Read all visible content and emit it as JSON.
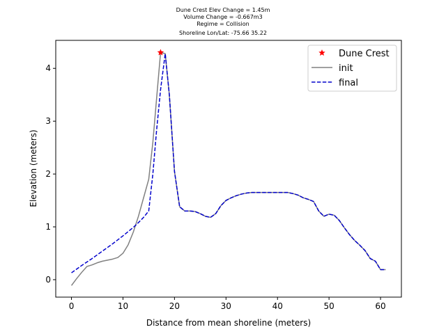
{
  "chart_data": {
    "type": "line",
    "title_lines": [
      "Dune Crest Elev Change = 1.45m",
      "Volume Change = -0.667m3",
      "Regime = Collision",
      "Shoreline Lon/Lat: -75.66 35.22"
    ],
    "xlabel": "Distance from mean shoreline (meters)",
    "ylabel": "Elevation (meters)",
    "xlim": [
      -3.05,
      64.05
    ],
    "ylim": [
      -0.33,
      4.53
    ],
    "xticks": [
      0,
      10,
      20,
      30,
      40,
      50,
      60
    ],
    "yticks": [
      0,
      1,
      2,
      3,
      4
    ],
    "legend_position": "top-right",
    "series": [
      {
        "name": "Dune Crest",
        "kind": "marker",
        "color": "#ff0000",
        "x": [
          17.3
        ],
        "y": [
          4.3
        ]
      },
      {
        "name": "init",
        "kind": "solid",
        "color": "#808080",
        "x": [
          0,
          1,
          2,
          3,
          4,
          5,
          6,
          7,
          8,
          9,
          10,
          11,
          12,
          13,
          14,
          15,
          15.8,
          16.5,
          17.3,
          18.2,
          19,
          20,
          21,
          22,
          23,
          24,
          25,
          26,
          27,
          28,
          29,
          30,
          31,
          32,
          33,
          34,
          35,
          36,
          37,
          38,
          39,
          40,
          41,
          42,
          43,
          44,
          45,
          46,
          47,
          48,
          49,
          50,
          51,
          52,
          53,
          54,
          55,
          56,
          57,
          58,
          59,
          60,
          61
        ],
        "y": [
          -0.11,
          0.02,
          0.14,
          0.25,
          0.28,
          0.32,
          0.35,
          0.37,
          0.39,
          0.42,
          0.5,
          0.66,
          0.9,
          1.2,
          1.55,
          1.9,
          2.6,
          3.4,
          4.3,
          4.28,
          3.5,
          2.05,
          1.38,
          1.3,
          1.3,
          1.29,
          1.25,
          1.2,
          1.18,
          1.25,
          1.4,
          1.5,
          1.55,
          1.59,
          1.62,
          1.64,
          1.65,
          1.65,
          1.65,
          1.65,
          1.65,
          1.65,
          1.65,
          1.65,
          1.63,
          1.6,
          1.55,
          1.52,
          1.48,
          1.3,
          1.2,
          1.24,
          1.22,
          1.12,
          0.98,
          0.85,
          0.74,
          0.65,
          0.55,
          0.4,
          0.35,
          0.19,
          0.19
        ]
      },
      {
        "name": "final",
        "kind": "dashed",
        "color": "#0000cc",
        "x": [
          0,
          2,
          4,
          6,
          8,
          10,
          12,
          13,
          14,
          15,
          15.8,
          16.5,
          17.3,
          18.2,
          19,
          20,
          21,
          22,
          23,
          24,
          25,
          26,
          27,
          28,
          29,
          30,
          31,
          32,
          33,
          34,
          35,
          36,
          37,
          38,
          39,
          40,
          41,
          42,
          43,
          44,
          45,
          46,
          47,
          48,
          49,
          50,
          51,
          52,
          53,
          54,
          55,
          56,
          57,
          58,
          59,
          60,
          61
        ],
        "y": [
          0.13,
          0.27,
          0.4,
          0.54,
          0.68,
          0.83,
          0.99,
          1.08,
          1.18,
          1.3,
          2.0,
          2.8,
          3.6,
          4.28,
          3.5,
          2.05,
          1.38,
          1.3,
          1.3,
          1.29,
          1.25,
          1.2,
          1.18,
          1.25,
          1.4,
          1.5,
          1.55,
          1.59,
          1.62,
          1.64,
          1.65,
          1.65,
          1.65,
          1.65,
          1.65,
          1.65,
          1.65,
          1.65,
          1.63,
          1.6,
          1.55,
          1.52,
          1.48,
          1.3,
          1.2,
          1.24,
          1.22,
          1.12,
          0.98,
          0.85,
          0.74,
          0.65,
          0.55,
          0.4,
          0.35,
          0.19,
          0.19
        ]
      }
    ]
  }
}
